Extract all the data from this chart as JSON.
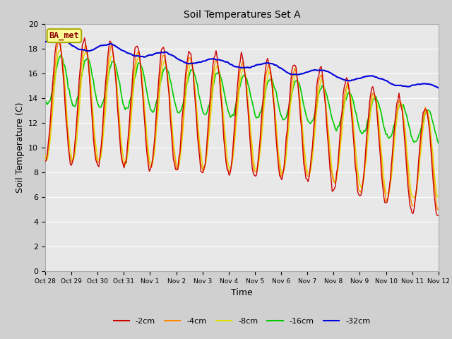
{
  "title": "Soil Temperatures Set A",
  "xlabel": "Time",
  "ylabel": "Soil Temperature (C)",
  "ylim": [
    0,
    20
  ],
  "yticks": [
    0,
    2,
    4,
    6,
    8,
    10,
    12,
    14,
    16,
    18,
    20
  ],
  "colors": {
    "-2cm": "#cc0000",
    "-4cm": "#ff8800",
    "-8cm": "#dddd00",
    "-16cm": "#00cc00",
    "-32cm": "#0000dd"
  },
  "legend_labels": [
    "-2cm",
    "-4cm",
    "-8cm",
    "-16cm",
    "-32cm"
  ],
  "annotation_text": "BA_met",
  "annotation_bg": "#ffff99",
  "annotation_border": "#aaaa00",
  "fig_facecolor": "#d0d0d0",
  "plot_facecolor": "#e8e8e8",
  "grid_color": "#ffffff",
  "x_tick_labels": [
    "Oct 28",
    "Oct 29",
    "Oct 30",
    "Oct 31",
    "Nov 1",
    "Nov 2",
    "Nov 3",
    "Nov 4",
    "Nov 5",
    "Nov 6",
    "Nov 7",
    "Nov 8",
    "Nov 9",
    "Nov 10",
    "Nov 11",
    "Nov 12"
  ],
  "num_points": 360,
  "figsize": [
    6.4,
    4.8
  ],
  "dpi": 100
}
